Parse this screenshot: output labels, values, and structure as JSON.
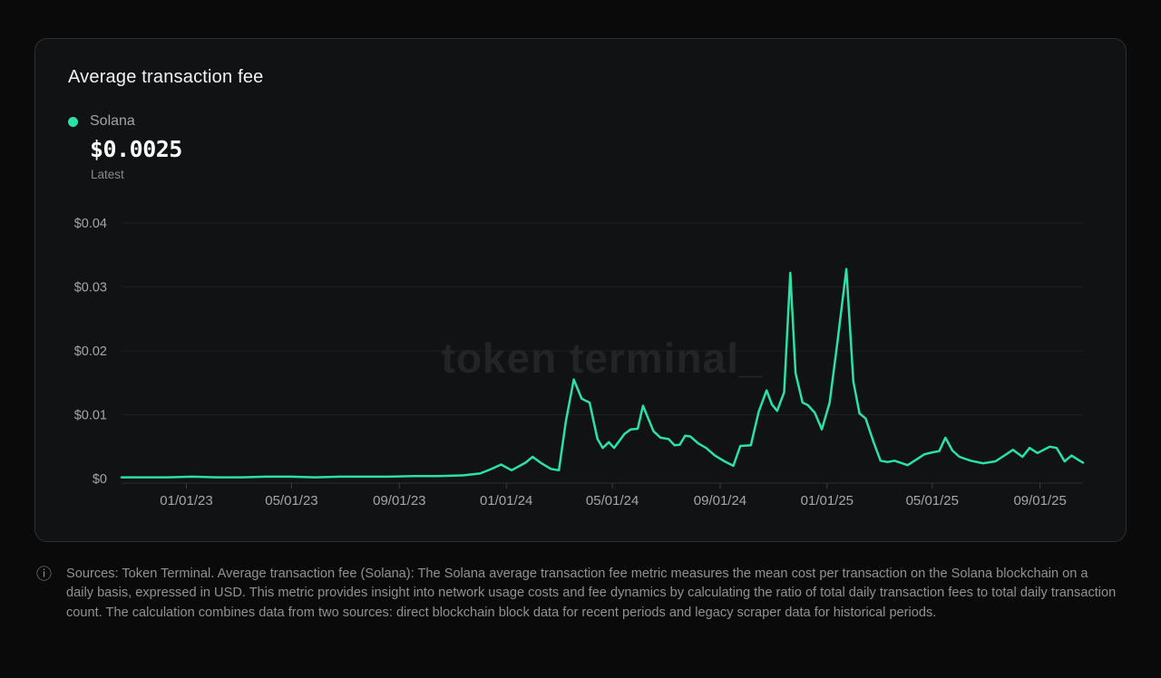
{
  "page": {
    "background": "#0a0a0a"
  },
  "card": {
    "title": "Average transaction fee",
    "legend": {
      "series_label": "Solana",
      "latest_value": "$0.0025",
      "latest_caption": "Latest",
      "dot_color": "#2be2a4"
    },
    "watermark": "token terminal_"
  },
  "footer": {
    "icon": "info-icon",
    "text": "Sources: Token Terminal. Average transaction fee (Solana): The Solana average transaction fee metric measures the mean cost per transaction on the Solana blockchain on a daily basis, expressed in USD. This metric provides insight into network usage costs and fee dynamics by calculating the ratio of total daily transaction fees to total daily transaction count. The calculation combines data from two sources: direct blockchain block data for recent periods and legacy scraper data for historical periods."
  },
  "chart_data": {
    "type": "line",
    "title": "Average transaction fee",
    "ylabel": "",
    "xlabel": "",
    "grid": "horizontal",
    "legend_position": "top-left",
    "colors": {
      "line": "#2be2a4",
      "gridline": "#1e1f20",
      "axis": "#2b2c2d",
      "tick": "#3d3e3f",
      "tick_label": "#a6a6a6",
      "watermark": "#232424"
    },
    "x_domain": [
      "2022-10-19",
      "2025-10-20"
    ],
    "ylim": [
      0,
      0.04
    ],
    "y_ticks": [
      {
        "v": 0,
        "label": "$0"
      },
      {
        "v": 0.01,
        "label": "$0.01"
      },
      {
        "v": 0.02,
        "label": "$0.02"
      },
      {
        "v": 0.03,
        "label": "$0.03"
      },
      {
        "v": 0.04,
        "label": "$0.04"
      }
    ],
    "x_ticks": [
      {
        "date": "2023-01-01",
        "label": "01/01/23"
      },
      {
        "date": "2023-05-01",
        "label": "05/01/23"
      },
      {
        "date": "2023-09-01",
        "label": "09/01/23"
      },
      {
        "date": "2024-01-01",
        "label": "01/01/24"
      },
      {
        "date": "2024-05-01",
        "label": "05/01/24"
      },
      {
        "date": "2024-09-01",
        "label": "09/01/24"
      },
      {
        "date": "2025-01-01",
        "label": "01/01/25"
      },
      {
        "date": "2025-05-01",
        "label": "05/01/25"
      },
      {
        "date": "2025-09-01",
        "label": "09/01/25"
      }
    ],
    "series": [
      {
        "name": "Solana",
        "unit": "USD",
        "latest": 0.0025,
        "points": [
          [
            "2022-10-19",
            0.0002
          ],
          [
            "2022-11-15",
            0.0002
          ],
          [
            "2022-12-10",
            0.0002
          ],
          [
            "2023-01-08",
            0.0003
          ],
          [
            "2023-02-05",
            0.0002
          ],
          [
            "2023-03-05",
            0.0002
          ],
          [
            "2023-04-02",
            0.0003
          ],
          [
            "2023-04-30",
            0.0003
          ],
          [
            "2023-05-28",
            0.0002
          ],
          [
            "2023-06-25",
            0.0003
          ],
          [
            "2023-07-23",
            0.0003
          ],
          [
            "2023-08-20",
            0.0003
          ],
          [
            "2023-09-17",
            0.0004
          ],
          [
            "2023-10-15",
            0.0004
          ],
          [
            "2023-11-12",
            0.0005
          ],
          [
            "2023-12-02",
            0.0008
          ],
          [
            "2023-12-15",
            0.0015
          ],
          [
            "2023-12-26",
            0.0022
          ],
          [
            "2024-01-07",
            0.0013
          ],
          [
            "2024-01-23",
            0.0025
          ],
          [
            "2024-01-31",
            0.0034
          ],
          [
            "2024-02-09",
            0.0025
          ],
          [
            "2024-02-21",
            0.0015
          ],
          [
            "2024-03-01",
            0.0013
          ],
          [
            "2024-03-09",
            0.009
          ],
          [
            "2024-03-18",
            0.0155
          ],
          [
            "2024-03-27",
            0.0125
          ],
          [
            "2024-04-05",
            0.0119
          ],
          [
            "2024-04-14",
            0.0062
          ],
          [
            "2024-04-20",
            0.0048
          ],
          [
            "2024-04-27",
            0.0057
          ],
          [
            "2024-05-03",
            0.0048
          ],
          [
            "2024-05-15",
            0.007
          ],
          [
            "2024-05-22",
            0.0077
          ],
          [
            "2024-05-30",
            0.0078
          ],
          [
            "2024-06-05",
            0.0114
          ],
          [
            "2024-06-17",
            0.0074
          ],
          [
            "2024-06-25",
            0.0064
          ],
          [
            "2024-07-04",
            0.0062
          ],
          [
            "2024-07-11",
            0.0052
          ],
          [
            "2024-07-17",
            0.0053
          ],
          [
            "2024-07-23",
            0.0067
          ],
          [
            "2024-07-29",
            0.0066
          ],
          [
            "2024-08-07",
            0.0055
          ],
          [
            "2024-08-16",
            0.0048
          ],
          [
            "2024-08-26",
            0.0036
          ],
          [
            "2024-09-06",
            0.0027
          ],
          [
            "2024-09-16",
            0.002
          ],
          [
            "2024-09-24",
            0.0051
          ],
          [
            "2024-10-06",
            0.0052
          ],
          [
            "2024-10-15",
            0.0105
          ],
          [
            "2024-10-24",
            0.0138
          ],
          [
            "2024-10-30",
            0.0116
          ],
          [
            "2024-11-05",
            0.0106
          ],
          [
            "2024-11-13",
            0.0135
          ],
          [
            "2024-11-20",
            0.0322
          ],
          [
            "2024-11-26",
            0.0165
          ],
          [
            "2024-12-04",
            0.0119
          ],
          [
            "2024-12-10",
            0.0115
          ],
          [
            "2024-12-18",
            0.0103
          ],
          [
            "2024-12-26",
            0.0077
          ],
          [
            "2025-01-04",
            0.0119
          ],
          [
            "2025-01-13",
            0.0215
          ],
          [
            "2025-01-23",
            0.0328
          ],
          [
            "2025-01-31",
            0.0152
          ],
          [
            "2025-02-07",
            0.0102
          ],
          [
            "2025-02-14",
            0.0094
          ],
          [
            "2025-02-23",
            0.0057
          ],
          [
            "2025-03-03",
            0.0028
          ],
          [
            "2025-03-11",
            0.0026
          ],
          [
            "2025-03-19",
            0.0028
          ],
          [
            "2025-04-03",
            0.0021
          ],
          [
            "2025-04-13",
            0.003
          ],
          [
            "2025-04-22",
            0.0038
          ],
          [
            "2025-05-01",
            0.0041
          ],
          [
            "2025-05-09",
            0.0043
          ],
          [
            "2025-05-16",
            0.0064
          ],
          [
            "2025-05-24",
            0.0044
          ],
          [
            "2025-06-01",
            0.0034
          ],
          [
            "2025-06-14",
            0.0028
          ],
          [
            "2025-06-28",
            0.0024
          ],
          [
            "2025-07-12",
            0.0027
          ],
          [
            "2025-07-20",
            0.0034
          ],
          [
            "2025-08-01",
            0.0045
          ],
          [
            "2025-08-12",
            0.0034
          ],
          [
            "2025-08-20",
            0.0048
          ],
          [
            "2025-08-29",
            0.004
          ],
          [
            "2025-09-12",
            0.005
          ],
          [
            "2025-09-20",
            0.0048
          ],
          [
            "2025-09-29",
            0.0027
          ],
          [
            "2025-10-07",
            0.0036
          ],
          [
            "2025-10-14",
            0.003
          ],
          [
            "2025-10-20",
            0.0025
          ]
        ]
      }
    ]
  }
}
